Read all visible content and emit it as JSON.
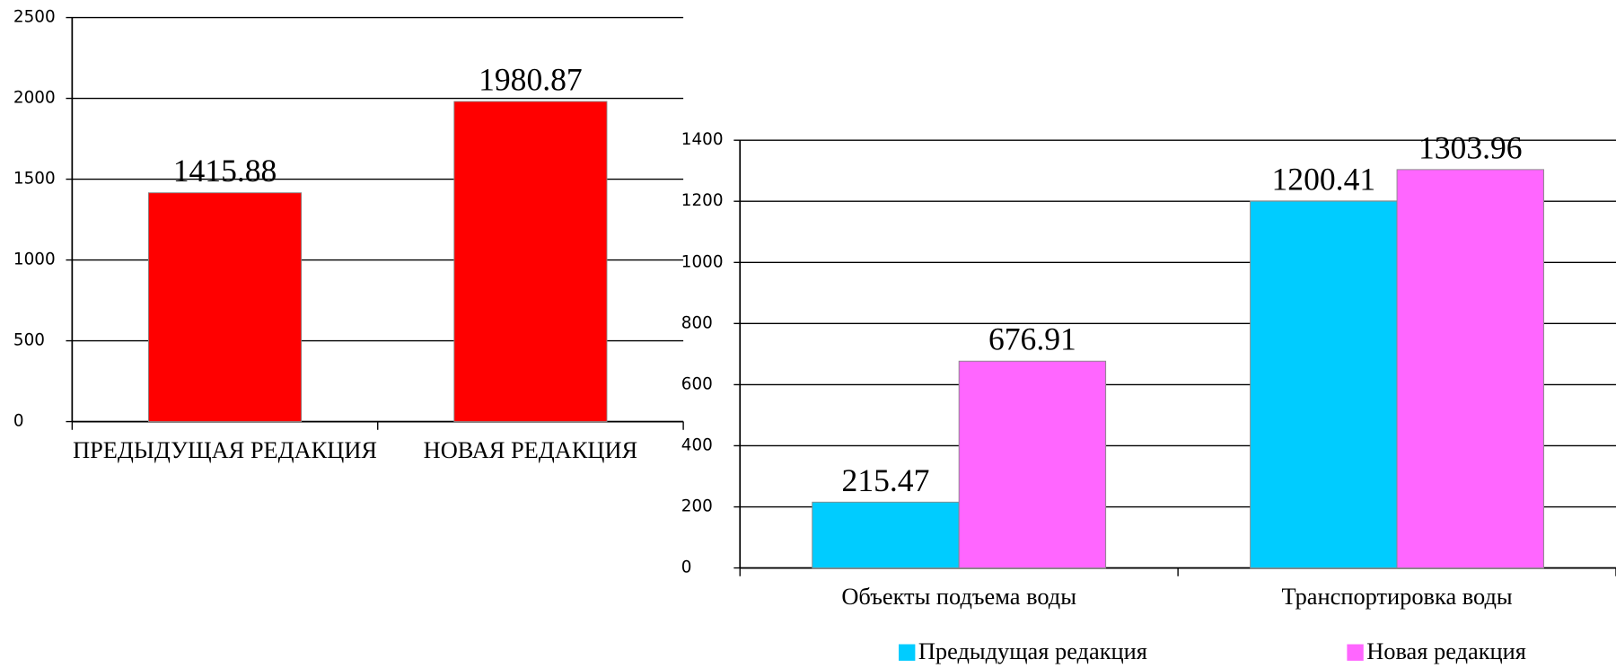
{
  "chart_data": [
    {
      "type": "bar",
      "categories": [
        "ПРЕДЫДУЩАЯ РЕДАКЦИЯ",
        "НОВАЯ РЕДАКЦИЯ"
      ],
      "values": [
        1415.88,
        1980.87
      ],
      "color": "#ff0000",
      "ylim": [
        0,
        2500
      ],
      "yticks": [
        0,
        500,
        1000,
        1500,
        2000,
        2500
      ],
      "grid": true
    },
    {
      "type": "grouped_bar",
      "categories": [
        "Объекты подъема воды",
        "Транспортировка воды"
      ],
      "series": [
        {
          "name": "Предыдущая редакция",
          "color": "#00ccff",
          "values": [
            215.47,
            1200.41
          ]
        },
        {
          "name": "Новая редакция",
          "color": "#ff66ff",
          "values": [
            676.91,
            1303.96
          ]
        }
      ],
      "ylim": [
        0,
        1400
      ],
      "yticks": [
        0,
        200,
        400,
        600,
        800,
        1000,
        1200,
        1400
      ],
      "grid": true,
      "legend": "bottom"
    }
  ]
}
